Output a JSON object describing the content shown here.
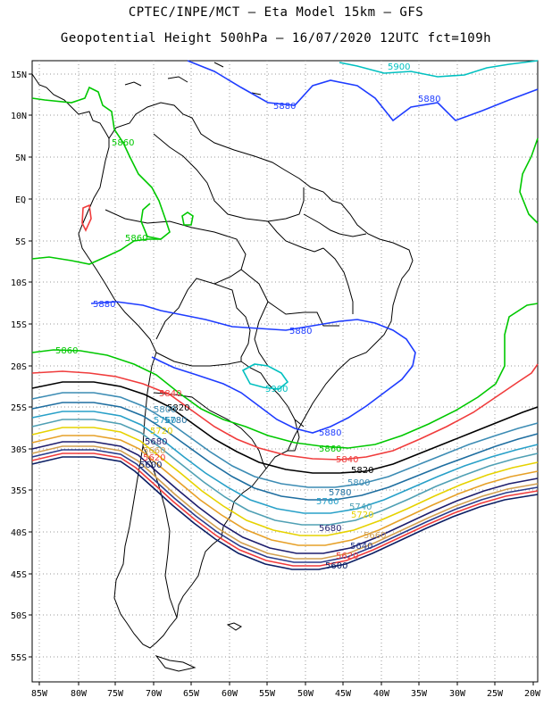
{
  "title_line1": "CPTEC/INPE/MCT —  Eta Model 15km — GFS",
  "title_line2": "Geopotential Height 500hPa — 16/07/2020 12UTC fct=109h",
  "lat_labels": [
    "15N",
    "10N",
    "5N",
    "EQ",
    "5S",
    "10S",
    "15S",
    "20S",
    "25S",
    "30S",
    "35S",
    "40S",
    "45S",
    "50S",
    "55S"
  ],
  "lon_labels": [
    "85W",
    "80W",
    "75W",
    "70W",
    "65W",
    "60W",
    "55W",
    "50W",
    "45W",
    "40W",
    "35W",
    "30W",
    "25W",
    "20W"
  ],
  "contours": [
    {
      "value": "5900",
      "color": "#00c0c0"
    },
    {
      "value": "5880",
      "color": "#1e3cff"
    },
    {
      "value": "5860",
      "color": "#00c800"
    },
    {
      "value": "5840",
      "color": "#f03c3c"
    },
    {
      "value": "5820",
      "color": "#000000"
    },
    {
      "value": "5800",
      "color": "#3c8cb4"
    },
    {
      "value": "5780",
      "color": "#1e6ea0"
    },
    {
      "value": "5760",
      "color": "#28a0c8"
    },
    {
      "value": "5740",
      "color": "#50a0b4"
    },
    {
      "value": "5720",
      "color": "#e6d200"
    },
    {
      "value": "5700",
      "color": "#e6a028"
    },
    {
      "value": "5680",
      "color": "#1e1e6e"
    },
    {
      "value": "5660",
      "color": "#d2a050"
    },
    {
      "value": "5640",
      "color": "#283c8c"
    },
    {
      "value": "5620",
      "color": "#f03c3c"
    },
    {
      "value": "5600",
      "color": "#0a1e64"
    }
  ],
  "labels": {
    "c5900_top": "5900",
    "c5880_n": "5880",
    "c5880_ne": "5880",
    "c5860_nw": "5860",
    "c5860_w": "5860",
    "c5880_w": "5880",
    "c5880_c": "5880",
    "c5860_sw": "5860",
    "c5900_c": "5900",
    "c5840_w": "5840",
    "c5820_w": "5820",
    "c5800_w": "5800",
    "c5780_w": "5780",
    "c5760_w": "5760",
    "c5720_w": "5720",
    "c5680_w": "5680",
    "c5660_w": "5660",
    "c5620_w": "5620",
    "c5600_w": "5600",
    "c5880_s": "5880",
    "c5860_s": "5860",
    "c5840_s": "5840",
    "c5820_s": "5820",
    "c5800_s": "5800",
    "c5780_s": "5780",
    "c5760_s": "5760",
    "c5740_s": "5740",
    "c5720_s": "5720",
    "c5680_s": "5680",
    "c5660_s": "5660",
    "c5640_s": "5640",
    "c5620_s": "5620",
    "c5600_s": "5600"
  }
}
